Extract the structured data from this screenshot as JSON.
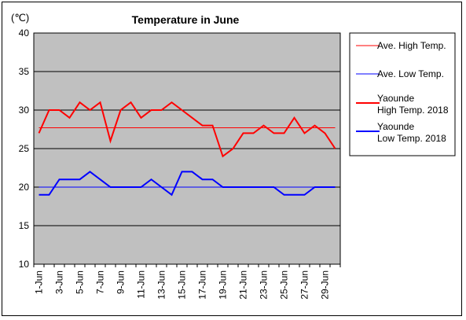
{
  "chart_data": {
    "type": "line",
    "title": "Temperature in June",
    "unit_label": "(℃)",
    "xlabel": "",
    "ylabel": "",
    "ylim": [
      10,
      40
    ],
    "yticks": [
      10,
      15,
      20,
      25,
      30,
      35,
      40
    ],
    "grid": true,
    "legend_position": "right",
    "plot_background": "#c0c0c0",
    "x": [
      "1-Jun",
      "2-Jun",
      "3-Jun",
      "4-Jun",
      "5-Jun",
      "6-Jun",
      "7-Jun",
      "8-Jun",
      "9-Jun",
      "10-Jun",
      "11-Jun",
      "12-Jun",
      "13-Jun",
      "14-Jun",
      "15-Jun",
      "16-Jun",
      "17-Jun",
      "18-Jun",
      "19-Jun",
      "20-Jun",
      "21-Jun",
      "22-Jun",
      "23-Jun",
      "24-Jun",
      "25-Jun",
      "26-Jun",
      "27-Jun",
      "28-Jun",
      "29-Jun",
      "30-Jun"
    ],
    "x_tick_labels": [
      "1-Jun",
      "3-Jun",
      "5-Jun",
      "7-Jun",
      "9-Jun",
      "11-Jun",
      "13-Jun",
      "15-Jun",
      "17-Jun",
      "19-Jun",
      "21-Jun",
      "23-Jun",
      "25-Jun",
      "27-Jun",
      "29-Jun"
    ],
    "series": [
      {
        "name": "Ave. High Temp.",
        "color": "#ff0000",
        "style": "thin",
        "values": [
          27.7,
          27.7,
          27.7,
          27.7,
          27.7,
          27.7,
          27.7,
          27.7,
          27.7,
          27.7,
          27.7,
          27.7,
          27.7,
          27.7,
          27.7,
          27.7,
          27.7,
          27.7,
          27.7,
          27.7,
          27.7,
          27.7,
          27.7,
          27.7,
          27.7,
          27.7,
          27.7,
          27.7,
          27.7,
          27.7
        ]
      },
      {
        "name": "Ave. Low Temp.",
        "color": "#0000ff",
        "style": "thin",
        "values": [
          20,
          20,
          20,
          20,
          20,
          20,
          20,
          20,
          20,
          20,
          20,
          20,
          20,
          20,
          20,
          20,
          20,
          20,
          20,
          20,
          20,
          20,
          20,
          20,
          20,
          20,
          20,
          20,
          20,
          20
        ]
      },
      {
        "name": "Yaounde\nHigh Temp. 2018",
        "color": "#ff0000",
        "style": "thick",
        "values": [
          27,
          30,
          30,
          29,
          31,
          30,
          31,
          26,
          30,
          31,
          29,
          30,
          30,
          31,
          30,
          29,
          28,
          28,
          24,
          25,
          27,
          27,
          28,
          27,
          27,
          29,
          27,
          28,
          27,
          25
        ]
      },
      {
        "name": "Yaounde\nLow Temp. 2018",
        "color": "#0000ff",
        "style": "thick",
        "values": [
          19,
          19,
          21,
          21,
          21,
          22,
          21,
          20,
          20,
          20,
          20,
          21,
          20,
          19,
          22,
          22,
          21,
          21,
          20,
          20,
          20,
          20,
          20,
          20,
          19,
          19,
          19,
          20,
          20,
          20
        ]
      }
    ]
  }
}
